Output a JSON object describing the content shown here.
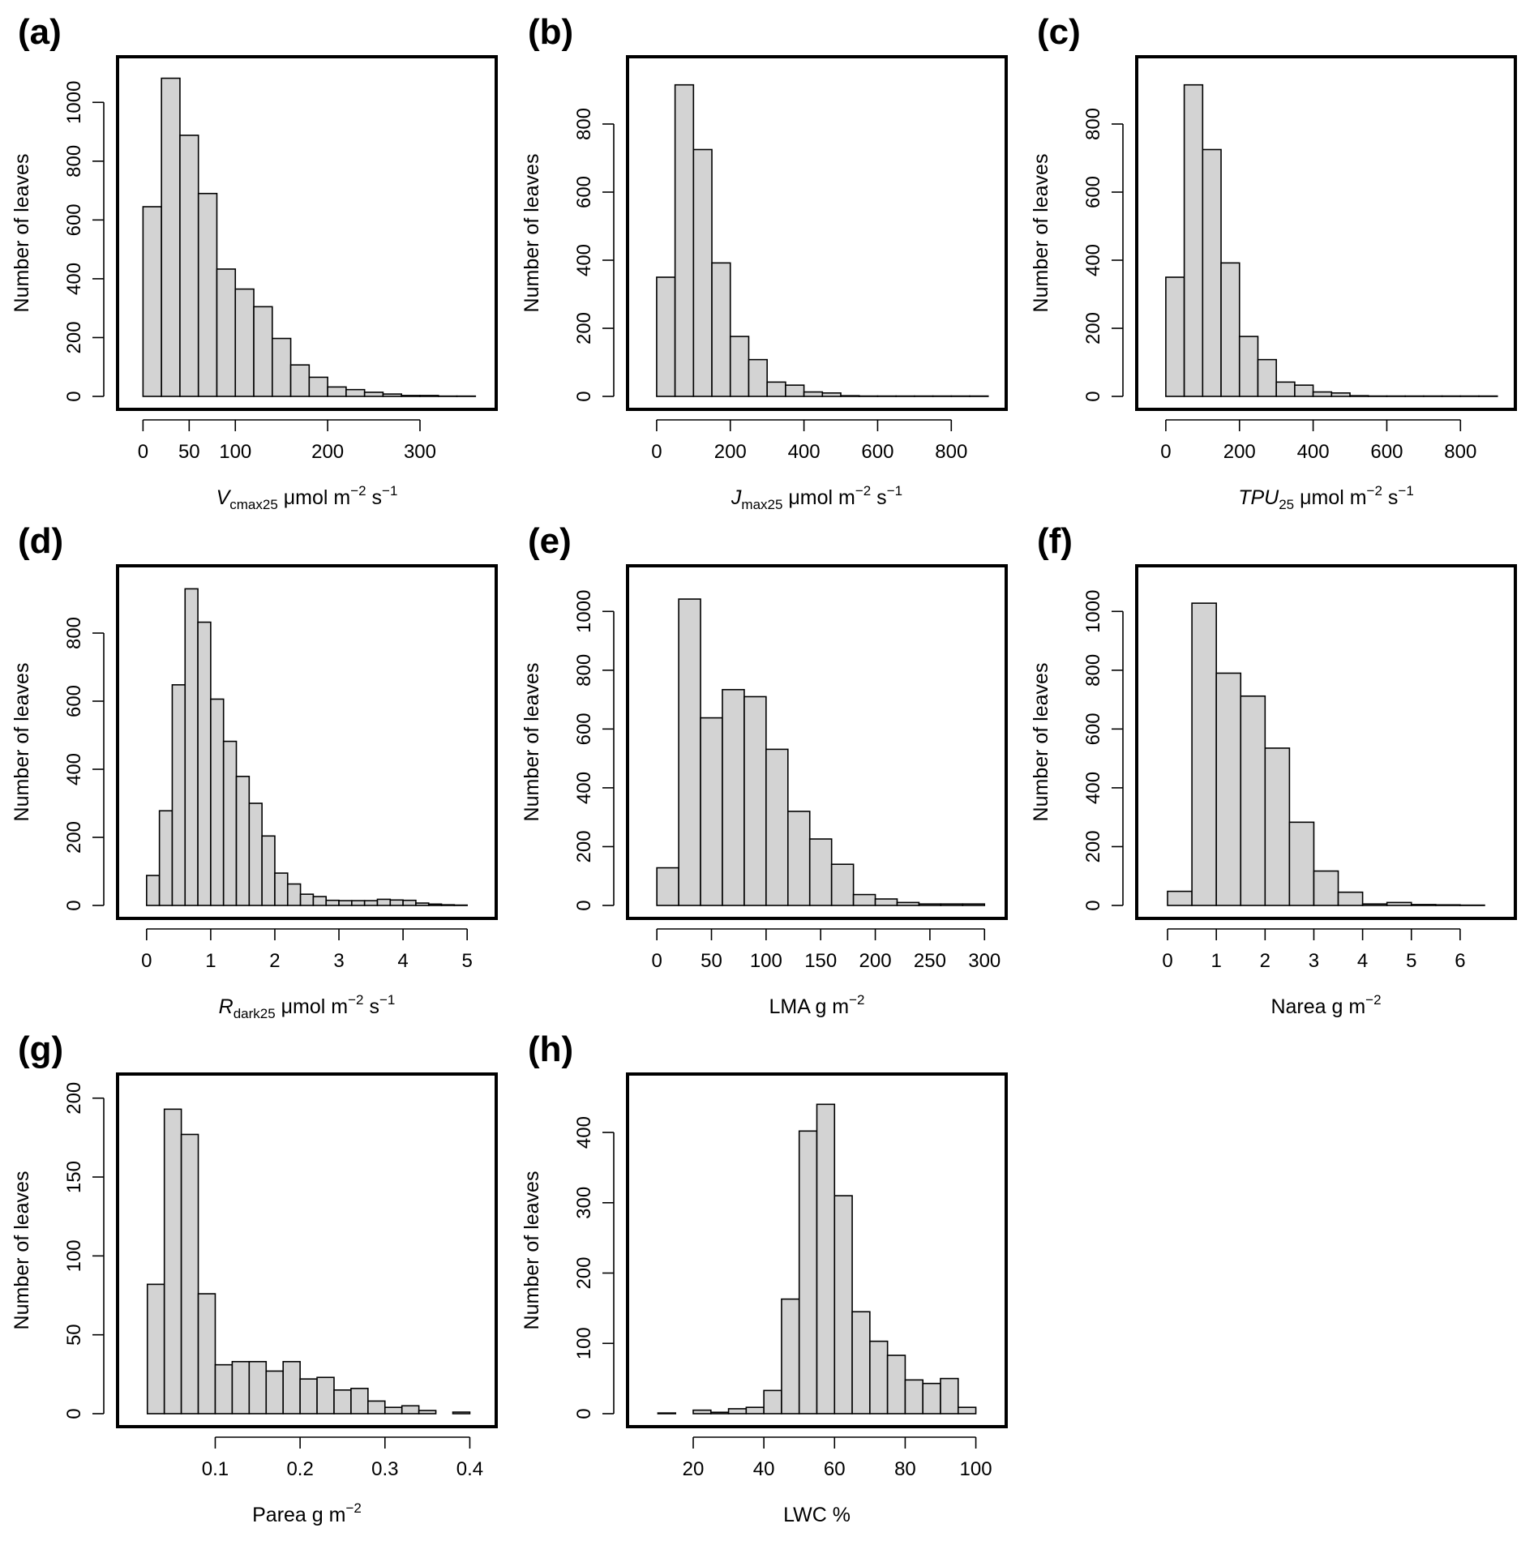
{
  "chart_data": [
    {
      "type": "histogram",
      "panel": "(a)",
      "ylabel": "Number of leaves",
      "xlabel": {
        "pre": "",
        "italic": "V",
        "sub": "cmax25",
        "unit": "μmol m",
        "sup1": "−2",
        "mid": " s",
        "sup2": "−1"
      },
      "xlim": [
        -10,
        365
      ],
      "ylim": [
        0,
        1100
      ],
      "xticks": [
        0,
        50,
        100,
        200,
        300
      ],
      "yticks": [
        0,
        200,
        400,
        600,
        800,
        1000
      ],
      "bins": {
        "start": 0,
        "width": 20,
        "counts": [
          645,
          1082,
          888,
          690,
          433,
          365,
          305,
          197,
          107,
          65,
          32,
          23,
          14,
          8,
          3,
          3,
          1,
          1
        ]
      }
    },
    {
      "type": "histogram",
      "panel": "(b)",
      "ylabel": "Number of leaves",
      "xlabel": {
        "pre": "",
        "italic": "J",
        "sub": "max25",
        "unit": "μmol m",
        "sup1": "−2",
        "mid": " s",
        "sup2": "−1"
      },
      "xlim": [
        -35,
        905
      ],
      "ylim": [
        0,
        950
      ],
      "xticks": [
        0,
        200,
        400,
        600,
        800
      ],
      "yticks": [
        0,
        200,
        400,
        600,
        800
      ],
      "bins": {
        "start": 0,
        "width": 50,
        "counts": [
          350,
          915,
          725,
          392,
          176,
          108,
          42,
          33,
          13,
          10,
          2,
          1,
          1,
          1,
          1,
          1,
          1,
          1
        ]
      }
    },
    {
      "type": "histogram",
      "panel": "(c)",
      "ylabel": "Number of leaves",
      "xlabel": {
        "pre": "",
        "italic": "TPU",
        "sub": "25",
        "unit": "μmol m",
        "sup1": "−2",
        "mid": " s",
        "sup2": "−1"
      },
      "xlim": [
        -35,
        905
      ],
      "ylim": [
        0,
        950
      ],
      "xticks": [
        0,
        200,
        400,
        600,
        800
      ],
      "yticks": [
        0,
        200,
        400,
        600,
        800
      ],
      "bins": {
        "start": 0,
        "width": 50,
        "counts": [
          350,
          915,
          725,
          392,
          176,
          108,
          42,
          33,
          13,
          10,
          2,
          1,
          1,
          1,
          1,
          1,
          1,
          1
        ]
      }
    },
    {
      "type": "histogram",
      "panel": "(d)",
      "ylabel": "Number of leaves",
      "xlabel": {
        "pre": "",
        "italic": "R",
        "sub": "dark25",
        "unit": "μmol m",
        "sup1": "−2",
        "mid": " s",
        "sup2": "−1"
      },
      "xlim": [
        -0.2,
        5.2
      ],
      "ylim": [
        0,
        950
      ],
      "xticks": [
        0,
        1,
        2,
        3,
        4,
        5
      ],
      "yticks": [
        0,
        200,
        400,
        600,
        800
      ],
      "bins": {
        "start": 0,
        "width": 0.2,
        "counts": [
          88,
          278,
          648,
          930,
          832,
          606,
          482,
          379,
          300,
          204,
          95,
          63,
          33,
          26,
          15,
          14,
          14,
          14,
          18,
          16,
          15,
          7,
          4,
          2,
          1
        ]
      }
    },
    {
      "type": "histogram",
      "panel": "(e)",
      "ylabel": "Number of leaves",
      "xlabel": {
        "pre": "LMA g m",
        "italic": "",
        "sub": "",
        "unit": "",
        "sup1": "−2",
        "mid": "",
        "sup2": ""
      },
      "xlim": [
        -12,
        305
      ],
      "ylim": [
        0,
        1100
      ],
      "xticks": [
        0,
        50,
        100,
        150,
        200,
        250,
        300
      ],
      "yticks": [
        0,
        200,
        400,
        600,
        800,
        1000
      ],
      "bins": {
        "start": 0,
        "width": 20,
        "counts": [
          128,
          1042,
          638,
          734,
          710,
          531,
          320,
          226,
          140,
          37,
          22,
          10,
          5,
          5,
          5
        ]
      }
    },
    {
      "type": "histogram",
      "panel": "(f)",
      "ylabel": "Number of leaves",
      "xlabel": {
        "pre": "Narea g m",
        "italic": "",
        "sub": "",
        "unit": "",
        "sup1": "−2",
        "mid": "",
        "sup2": ""
      },
      "xlim": [
        -0.3,
        6.8
      ],
      "ylim": [
        0,
        1100
      ],
      "xticks": [
        0,
        1,
        2,
        3,
        4,
        5,
        6
      ],
      "yticks": [
        0,
        200,
        400,
        600,
        800,
        1000
      ],
      "bins": {
        "start": 0,
        "width": 0.5,
        "counts": [
          48,
          1028,
          790,
          712,
          535,
          283,
          117,
          45,
          5,
          10,
          3,
          2,
          1
        ]
      }
    },
    {
      "type": "histogram",
      "panel": "(g)",
      "ylabel": "Number of leaves",
      "xlabel": {
        "pre": "Parea g m",
        "italic": "",
        "sub": "",
        "unit": "",
        "sup1": "−2",
        "mid": "",
        "sup2": ""
      },
      "xlim": [
        0.004,
        0.412
      ],
      "ylim": [
        0,
        205
      ],
      "xticks": [
        0.1,
        0.2,
        0.3,
        0.4
      ],
      "yticks": [
        0,
        50,
        100,
        150,
        200
      ],
      "bins": {
        "start": 0.02,
        "width": 0.02,
        "counts": [
          82,
          193,
          177,
          76,
          31,
          33,
          33,
          27,
          33,
          22,
          23,
          15,
          16,
          8,
          4,
          5,
          2,
          0,
          1
        ]
      }
    },
    {
      "type": "histogram",
      "panel": "(h)",
      "ylabel": "Number of leaves",
      "xlabel": {
        "pre": "LWC %",
        "italic": "",
        "sub": "",
        "unit": "",
        "sup1": "",
        "mid": "",
        "sup2": ""
      },
      "xlim": [
        6,
        104
      ],
      "ylim": [
        0,
        460
      ],
      "xticks": [
        20,
        40,
        60,
        80,
        100
      ],
      "yticks": [
        0,
        100,
        200,
        300,
        400
      ],
      "bins": {
        "start": 10,
        "width": 5,
        "counts": [
          1,
          0,
          5,
          2,
          7,
          9,
          33,
          163,
          402,
          440,
          310,
          145,
          103,
          83,
          48,
          43,
          50,
          9
        ]
      }
    }
  ]
}
